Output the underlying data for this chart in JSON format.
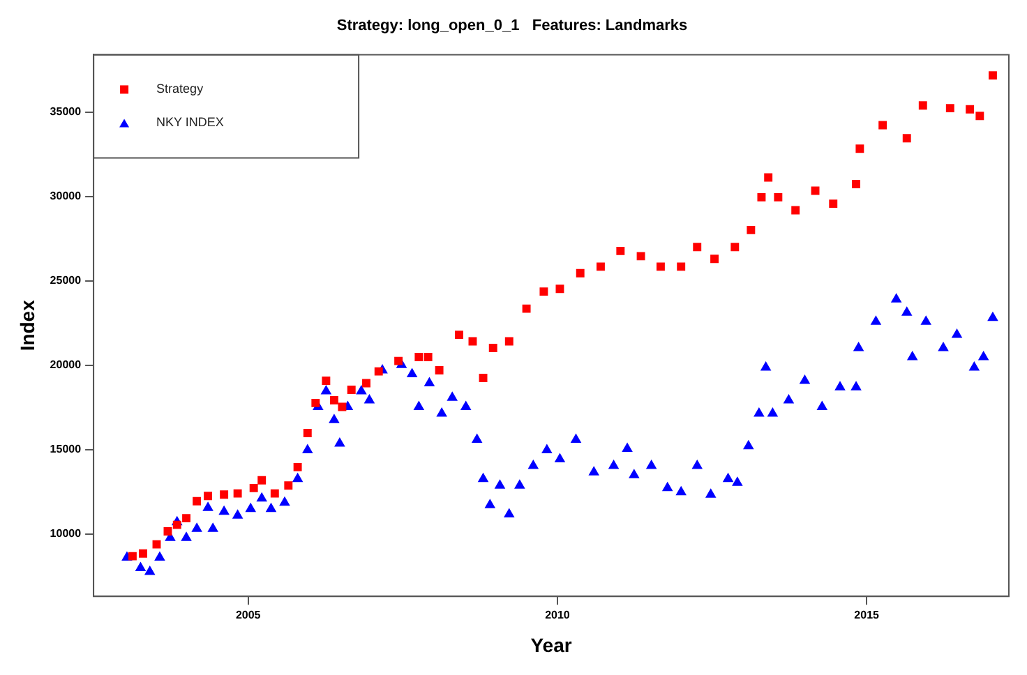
{
  "chart_data": {
    "type": "scatter",
    "title": "Strategy: long_open_0_1   Features: Landmarks",
    "xlabel": "Year",
    "ylabel": "Index",
    "xlim": [
      2002.5,
      2017.3
    ],
    "ylim": [
      6300,
      38400
    ],
    "xticks": [
      2005,
      2010,
      2015
    ],
    "yticks": [
      10000,
      15000,
      20000,
      25000,
      30000,
      35000
    ],
    "grid": false,
    "legend": "top left",
    "series": [
      {
        "name": "Strategy",
        "color": "#ff0000",
        "marker": "square",
        "x": [
          2003.13,
          2003.3,
          2003.52,
          2003.7,
          2003.85,
          2004.0,
          2004.17,
          2004.35,
          2004.61,
          2004.83,
          2005.09,
          2005.22,
          2005.43,
          2005.65,
          2005.8,
          2005.96,
          2006.09,
          2006.26,
          2006.39,
          2006.52,
          2006.67,
          2006.91,
          2007.11,
          2007.43,
          2007.76,
          2007.91,
          2008.09,
          2008.41,
          2008.63,
          2008.8,
          2008.96,
          2009.22,
          2009.5,
          2009.78,
          2010.04,
          2010.37,
          2010.7,
          2011.02,
          2011.35,
          2011.67,
          2012.0,
          2012.26,
          2012.54,
          2012.87,
          2013.13,
          2013.3,
          2013.41,
          2013.57,
          2013.85,
          2014.17,
          2014.46,
          2014.83,
          2014.89,
          2015.26,
          2015.65,
          2015.91,
          2016.35,
          2016.67,
          2016.83,
          2017.04
        ],
        "values": [
          8680,
          8840,
          9380,
          10150,
          10540,
          10930,
          11940,
          12250,
          12330,
          12400,
          12720,
          13180,
          12400,
          12870,
          13960,
          15980,
          17760,
          19080,
          17920,
          17530,
          18540,
          18930,
          19630,
          20250,
          20480,
          20480,
          19700,
          21800,
          21410,
          19240,
          21020,
          21410,
          23350,
          24360,
          24520,
          25450,
          25840,
          26770,
          26460,
          25840,
          25840,
          27000,
          26300,
          27000,
          28010,
          29950,
          31120,
          29950,
          29180,
          30340,
          29570,
          30730,
          32830,
          34220,
          33450,
          35390,
          35230,
          35160,
          34770,
          37170
        ]
      },
      {
        "name": "NKY INDEX",
        "color": "#0000ff",
        "marker": "triangle",
        "x": [
          2003.04,
          2003.26,
          2003.41,
          2003.57,
          2003.74,
          2003.85,
          2004.0,
          2004.17,
          2004.35,
          2004.43,
          2004.61,
          2004.83,
          2005.04,
          2005.22,
          2005.37,
          2005.59,
          2005.8,
          2005.96,
          2006.13,
          2006.26,
          2006.39,
          2006.48,
          2006.61,
          2006.83,
          2006.96,
          2007.17,
          2007.48,
          2007.65,
          2007.76,
          2007.93,
          2008.13,
          2008.3,
          2008.52,
          2008.7,
          2008.8,
          2008.91,
          2009.07,
          2009.22,
          2009.39,
          2009.61,
          2009.83,
          2010.04,
          2010.3,
          2010.59,
          2010.91,
          2011.13,
          2011.24,
          2011.52,
          2011.78,
          2012.0,
          2012.26,
          2012.48,
          2012.76,
          2012.91,
          2013.09,
          2013.26,
          2013.37,
          2013.48,
          2013.74,
          2014.0,
          2014.28,
          2014.57,
          2014.83,
          2014.87,
          2015.15,
          2015.48,
          2015.65,
          2015.74,
          2015.96,
          2016.24,
          2016.46,
          2016.74,
          2016.89,
          2017.04
        ],
        "values": [
          8600,
          7980,
          7750,
          8600,
          9770,
          10700,
          9770,
          10310,
          11550,
          10310,
          11320,
          11090,
          11480,
          12100,
          11480,
          11860,
          13260,
          14970,
          17530,
          18460,
          16750,
          15360,
          17530,
          18460,
          17920,
          19700,
          20020,
          19470,
          17530,
          18930,
          17140,
          18070,
          17530,
          15590,
          13260,
          11710,
          12870,
          11160,
          12870,
          14040,
          14970,
          14430,
          15590,
          13650,
          14040,
          15050,
          13490,
          14040,
          12720,
          12480,
          14040,
          12330,
          13260,
          13030,
          15200,
          17140,
          19860,
          17140,
          17920,
          19080,
          17530,
          18700,
          18700,
          21020,
          22580,
          23900,
          23120,
          20480,
          22580,
          21020,
          21800,
          19860,
          20480,
          22810
        ]
      }
    ]
  }
}
